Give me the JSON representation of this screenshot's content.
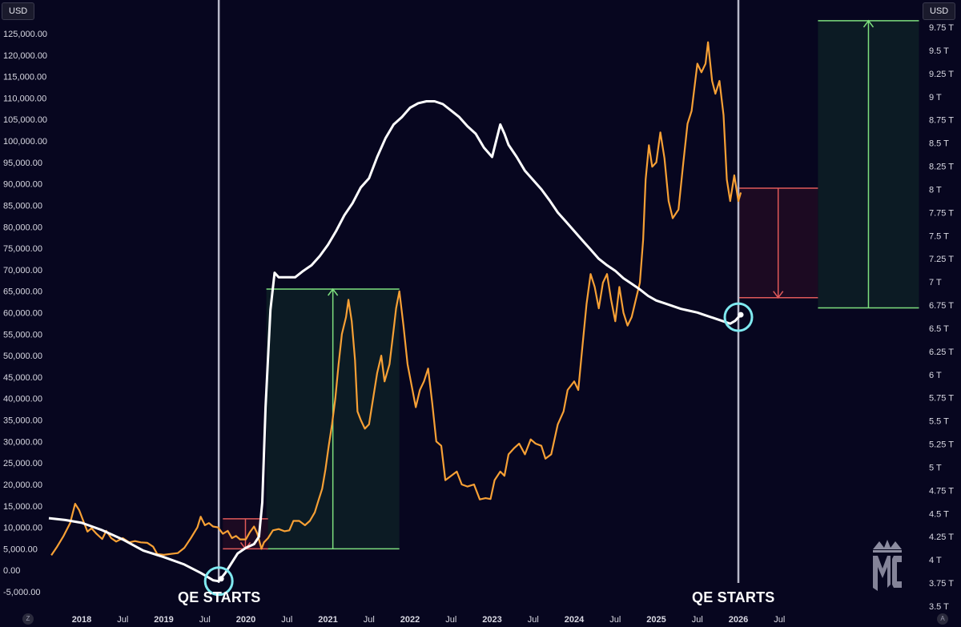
{
  "axes": {
    "left_unit": "USD",
    "right_unit": "USD",
    "corner_left": "Z",
    "corner_right": "A"
  },
  "annotations": {
    "qe_left": "QE STARTS",
    "qe_right": "QE STARTS"
  },
  "logo_text": "MC",
  "colors": {
    "background": "#07061f",
    "btc_line": "#f7a035",
    "balance_line": "#ffffff",
    "gain_box": "#0c1b24",
    "gain_line": "#7ee07e",
    "loss_box": "#1c0a22",
    "loss_line": "#e05a5a",
    "marker_circle": "#7fe9f0",
    "vertical_line": "#b8b8c8"
  },
  "chart_data": {
    "type": "line",
    "left_axis": {
      "unit": "USD",
      "range": [
        -5000,
        125000
      ],
      "ticks": [
        "-5,000.00",
        "0.00",
        "5,000.00",
        "10,000.00",
        "15,000.00",
        "20,000.00",
        "25,000.00",
        "30,000.00",
        "35,000.00",
        "40,000.00",
        "45,000.00",
        "50,000.00",
        "55,000.00",
        "60,000.00",
        "65,000.00",
        "70,000.00",
        "75,000.00",
        "80,000.00",
        "85,000.00",
        "90,000.00",
        "95,000.00",
        "100,000.00",
        "105,000.00",
        "110,000.00",
        "115,000.00",
        "120,000.00",
        "125,000.00"
      ]
    },
    "right_axis": {
      "unit": "USD",
      "range": [
        3.5,
        9.75
      ],
      "ticks": [
        "3.5 T",
        "3.75 T",
        "4 T",
        "4.25 T",
        "4.5 T",
        "4.75 T",
        "5 T",
        "5.25 T",
        "5.5 T",
        "5.75 T",
        "6 T",
        "6.25 T",
        "6.5 T",
        "6.75 T",
        "7 T",
        "7.25 T",
        "7.5 T",
        "7.75 T",
        "8 T",
        "8.25 T",
        "8.5 T",
        "8.75 T",
        "9 T",
        "9.25 T",
        "9.5 T",
        "9.75 T"
      ]
    },
    "x_axis": {
      "range": [
        2017.6,
        2027.2
      ],
      "ticks": [
        {
          "label": "2018",
          "t": 2018.0,
          "year": true
        },
        {
          "label": "Jul",
          "t": 2018.5,
          "year": false
        },
        {
          "label": "2019",
          "t": 2019.0,
          "year": true
        },
        {
          "label": "Jul",
          "t": 2019.5,
          "year": false
        },
        {
          "label": "2020",
          "t": 2020.0,
          "year": true
        },
        {
          "label": "Jul",
          "t": 2020.5,
          "year": false
        },
        {
          "label": "2021",
          "t": 2021.0,
          "year": true
        },
        {
          "label": "Jul",
          "t": 2021.5,
          "year": false
        },
        {
          "label": "2022",
          "t": 2022.0,
          "year": true
        },
        {
          "label": "Jul",
          "t": 2022.5,
          "year": false
        },
        {
          "label": "2023",
          "t": 2023.0,
          "year": true
        },
        {
          "label": "Jul",
          "t": 2023.5,
          "year": false
        },
        {
          "label": "2024",
          "t": 2024.0,
          "year": true
        },
        {
          "label": "Jul",
          "t": 2024.5,
          "year": false
        },
        {
          "label": "2025",
          "t": 2025.0,
          "year": true
        },
        {
          "label": "Jul",
          "t": 2025.5,
          "year": false
        },
        {
          "label": "2026",
          "t": 2026.0,
          "year": true
        },
        {
          "label": "Jul",
          "t": 2026.5,
          "year": false
        }
      ]
    },
    "series": [
      {
        "axis": "left",
        "color": "#f7a035",
        "points": [
          [
            2017.63,
            3500
          ],
          [
            2017.7,
            5500
          ],
          [
            2017.78,
            8000
          ],
          [
            2017.86,
            11000
          ],
          [
            2017.92,
            15500
          ],
          [
            2017.97,
            14000
          ],
          [
            2018.02,
            11500
          ],
          [
            2018.07,
            9000
          ],
          [
            2018.12,
            9800
          ],
          [
            2018.18,
            8500
          ],
          [
            2018.25,
            7300
          ],
          [
            2018.3,
            9200
          ],
          [
            2018.36,
            7500
          ],
          [
            2018.42,
            6700
          ],
          [
            2018.5,
            7500
          ],
          [
            2018.58,
            6500
          ],
          [
            2018.65,
            6800
          ],
          [
            2018.72,
            6500
          ],
          [
            2018.8,
            6400
          ],
          [
            2018.87,
            5500
          ],
          [
            2018.92,
            3800
          ],
          [
            2019.0,
            3600
          ],
          [
            2019.08,
            3800
          ],
          [
            2019.17,
            4000
          ],
          [
            2019.25,
            5200
          ],
          [
            2019.33,
            7500
          ],
          [
            2019.41,
            10000
          ],
          [
            2019.45,
            12500
          ],
          [
            2019.5,
            10500
          ],
          [
            2019.55,
            11000
          ],
          [
            2019.6,
            10200
          ],
          [
            2019.66,
            10000
          ],
          [
            2019.72,
            8500
          ],
          [
            2019.78,
            9200
          ],
          [
            2019.83,
            7500
          ],
          [
            2019.88,
            8000
          ],
          [
            2019.93,
            7200
          ],
          [
            2020.0,
            7200
          ],
          [
            2020.05,
            8900
          ],
          [
            2020.1,
            10200
          ],
          [
            2020.14,
            8500
          ],
          [
            2020.19,
            5000
          ],
          [
            2020.22,
            6500
          ],
          [
            2020.27,
            7500
          ],
          [
            2020.33,
            9300
          ],
          [
            2020.4,
            9600
          ],
          [
            2020.47,
            9100
          ],
          [
            2020.53,
            9300
          ],
          [
            2020.58,
            11500
          ],
          [
            2020.65,
            11500
          ],
          [
            2020.72,
            10500
          ],
          [
            2020.78,
            11500
          ],
          [
            2020.84,
            13500
          ],
          [
            2020.88,
            16000
          ],
          [
            2020.93,
            19000
          ],
          [
            2020.97,
            23500
          ],
          [
            2021.01,
            29000
          ],
          [
            2021.05,
            34000
          ],
          [
            2021.09,
            40000
          ],
          [
            2021.13,
            48000
          ],
          [
            2021.17,
            55000
          ],
          [
            2021.22,
            59000
          ],
          [
            2021.25,
            63000
          ],
          [
            2021.29,
            58000
          ],
          [
            2021.33,
            49000
          ],
          [
            2021.36,
            37000
          ],
          [
            2021.4,
            35000
          ],
          [
            2021.45,
            33000
          ],
          [
            2021.5,
            34000
          ],
          [
            2021.55,
            40000
          ],
          [
            2021.6,
            46000
          ],
          [
            2021.65,
            50000
          ],
          [
            2021.69,
            44000
          ],
          [
            2021.75,
            48000
          ],
          [
            2021.8,
            56000
          ],
          [
            2021.83,
            61000
          ],
          [
            2021.87,
            65000
          ],
          [
            2021.92,
            57000
          ],
          [
            2021.97,
            48000
          ],
          [
            2022.02,
            43000
          ],
          [
            2022.07,
            38000
          ],
          [
            2022.12,
            42000
          ],
          [
            2022.17,
            44000
          ],
          [
            2022.22,
            47000
          ],
          [
            2022.27,
            39000
          ],
          [
            2022.32,
            30000
          ],
          [
            2022.38,
            29000
          ],
          [
            2022.43,
            21000
          ],
          [
            2022.5,
            22000
          ],
          [
            2022.57,
            23000
          ],
          [
            2022.63,
            20000
          ],
          [
            2022.7,
            19500
          ],
          [
            2022.78,
            20000
          ],
          [
            2022.85,
            16500
          ],
          [
            2022.92,
            16800
          ],
          [
            2022.98,
            16600
          ],
          [
            2023.03,
            21000
          ],
          [
            2023.1,
            23000
          ],
          [
            2023.15,
            22000
          ],
          [
            2023.2,
            27000
          ],
          [
            2023.27,
            28500
          ],
          [
            2023.33,
            29500
          ],
          [
            2023.4,
            27000
          ],
          [
            2023.47,
            30500
          ],
          [
            2023.53,
            29500
          ],
          [
            2023.6,
            29000
          ],
          [
            2023.65,
            26000
          ],
          [
            2023.72,
            27000
          ],
          [
            2023.8,
            34000
          ],
          [
            2023.87,
            37000
          ],
          [
            2023.92,
            42000
          ],
          [
            2024.0,
            44000
          ],
          [
            2024.05,
            42000
          ],
          [
            2024.1,
            52000
          ],
          [
            2024.15,
            62000
          ],
          [
            2024.2,
            69000
          ],
          [
            2024.25,
            66000
          ],
          [
            2024.3,
            61000
          ],
          [
            2024.35,
            67000
          ],
          [
            2024.4,
            69000
          ],
          [
            2024.45,
            63000
          ],
          [
            2024.5,
            58000
          ],
          [
            2024.55,
            66000
          ],
          [
            2024.6,
            60000
          ],
          [
            2024.65,
            57000
          ],
          [
            2024.7,
            59000
          ],
          [
            2024.75,
            63000
          ],
          [
            2024.8,
            67000
          ],
          [
            2024.84,
            77000
          ],
          [
            2024.87,
            91000
          ],
          [
            2024.91,
            99000
          ],
          [
            2024.95,
            94000
          ],
          [
            2025.0,
            95000
          ],
          [
            2025.05,
            102000
          ],
          [
            2025.1,
            96000
          ],
          [
            2025.15,
            86000
          ],
          [
            2025.2,
            82000
          ],
          [
            2025.27,
            84000
          ],
          [
            2025.33,
            95000
          ],
          [
            2025.38,
            104000
          ],
          [
            2025.43,
            107000
          ],
          [
            2025.5,
            118000
          ],
          [
            2025.55,
            116000
          ],
          [
            2025.6,
            118000
          ],
          [
            2025.63,
            123000
          ],
          [
            2025.68,
            114000
          ],
          [
            2025.72,
            111000
          ],
          [
            2025.77,
            114000
          ],
          [
            2025.82,
            106000
          ],
          [
            2025.86,
            91000
          ],
          [
            2025.9,
            86000
          ],
          [
            2025.95,
            92000
          ],
          [
            2026.0,
            86000
          ],
          [
            2026.03,
            88000
          ]
        ]
      },
      {
        "axis": "right",
        "color": "#ffffff",
        "points": [
          [
            2017.6,
            4.45
          ],
          [
            2017.8,
            4.43
          ],
          [
            2018.0,
            4.4
          ],
          [
            2018.25,
            4.32
          ],
          [
            2018.5,
            4.22
          ],
          [
            2018.75,
            4.1
          ],
          [
            2019.0,
            4.03
          ],
          [
            2019.25,
            3.95
          ],
          [
            2019.45,
            3.86
          ],
          [
            2019.6,
            3.78
          ],
          [
            2019.67,
            3.77
          ],
          [
            2019.75,
            3.86
          ],
          [
            2019.9,
            4.07
          ],
          [
            2020.0,
            4.13
          ],
          [
            2020.1,
            4.17
          ],
          [
            2020.16,
            4.25
          ],
          [
            2020.2,
            4.62
          ],
          [
            2020.24,
            5.65
          ],
          [
            2020.3,
            6.7
          ],
          [
            2020.35,
            7.1
          ],
          [
            2020.4,
            7.05
          ],
          [
            2020.5,
            7.05
          ],
          [
            2020.6,
            7.05
          ],
          [
            2020.7,
            7.12
          ],
          [
            2020.8,
            7.18
          ],
          [
            2020.9,
            7.28
          ],
          [
            2021.0,
            7.4
          ],
          [
            2021.1,
            7.55
          ],
          [
            2021.2,
            7.72
          ],
          [
            2021.3,
            7.85
          ],
          [
            2021.4,
            8.02
          ],
          [
            2021.5,
            8.12
          ],
          [
            2021.6,
            8.35
          ],
          [
            2021.7,
            8.55
          ],
          [
            2021.8,
            8.7
          ],
          [
            2021.9,
            8.78
          ],
          [
            2022.0,
            8.88
          ],
          [
            2022.1,
            8.93
          ],
          [
            2022.2,
            8.95
          ],
          [
            2022.3,
            8.95
          ],
          [
            2022.4,
            8.92
          ],
          [
            2022.5,
            8.85
          ],
          [
            2022.6,
            8.78
          ],
          [
            2022.7,
            8.68
          ],
          [
            2022.8,
            8.6
          ],
          [
            2022.9,
            8.45
          ],
          [
            2023.0,
            8.35
          ],
          [
            2023.1,
            8.7
          ],
          [
            2023.15,
            8.6
          ],
          [
            2023.2,
            8.48
          ],
          [
            2023.3,
            8.35
          ],
          [
            2023.4,
            8.2
          ],
          [
            2023.5,
            8.1
          ],
          [
            2023.6,
            8.0
          ],
          [
            2023.7,
            7.88
          ],
          [
            2023.8,
            7.75
          ],
          [
            2023.9,
            7.65
          ],
          [
            2024.0,
            7.55
          ],
          [
            2024.1,
            7.45
          ],
          [
            2024.2,
            7.35
          ],
          [
            2024.3,
            7.25
          ],
          [
            2024.4,
            7.18
          ],
          [
            2024.5,
            7.12
          ],
          [
            2024.6,
            7.04
          ],
          [
            2024.7,
            6.98
          ],
          [
            2024.8,
            6.92
          ],
          [
            2024.9,
            6.85
          ],
          [
            2025.0,
            6.8
          ],
          [
            2025.1,
            6.77
          ],
          [
            2025.2,
            6.74
          ],
          [
            2025.3,
            6.71
          ],
          [
            2025.4,
            6.69
          ],
          [
            2025.5,
            6.67
          ],
          [
            2025.6,
            6.64
          ],
          [
            2025.7,
            6.61
          ],
          [
            2025.8,
            6.58
          ],
          [
            2025.9,
            6.55
          ],
          [
            2025.96,
            6.58
          ],
          [
            2026.0,
            6.62
          ],
          [
            2026.04,
            6.65
          ]
        ]
      }
    ],
    "vertical_markers": [
      2019.67,
      2026.0
    ],
    "circle_markers": [
      {
        "t": 2019.67,
        "value": 3.77,
        "axis": "right"
      },
      {
        "t": 2026.0,
        "value": 6.62,
        "axis": "right"
      }
    ],
    "boxes": [
      {
        "kind": "gain",
        "t0": 2020.25,
        "t1": 2021.87,
        "v0": 5000,
        "v1": 65500,
        "axis": "left"
      },
      {
        "kind": "loss",
        "t0": 2019.72,
        "t1": 2020.27,
        "v0": 12000,
        "v1": 5000,
        "axis": "left"
      },
      {
        "kind": "loss",
        "t0": 2026.0,
        "t1": 2026.97,
        "v0": 89000,
        "v1": 63500,
        "axis": "left"
      },
      {
        "kind": "gain",
        "t0": 2026.97,
        "t1": 2028.2,
        "v0": 6.72,
        "v1": 9.82,
        "axis": "right"
      }
    ]
  }
}
